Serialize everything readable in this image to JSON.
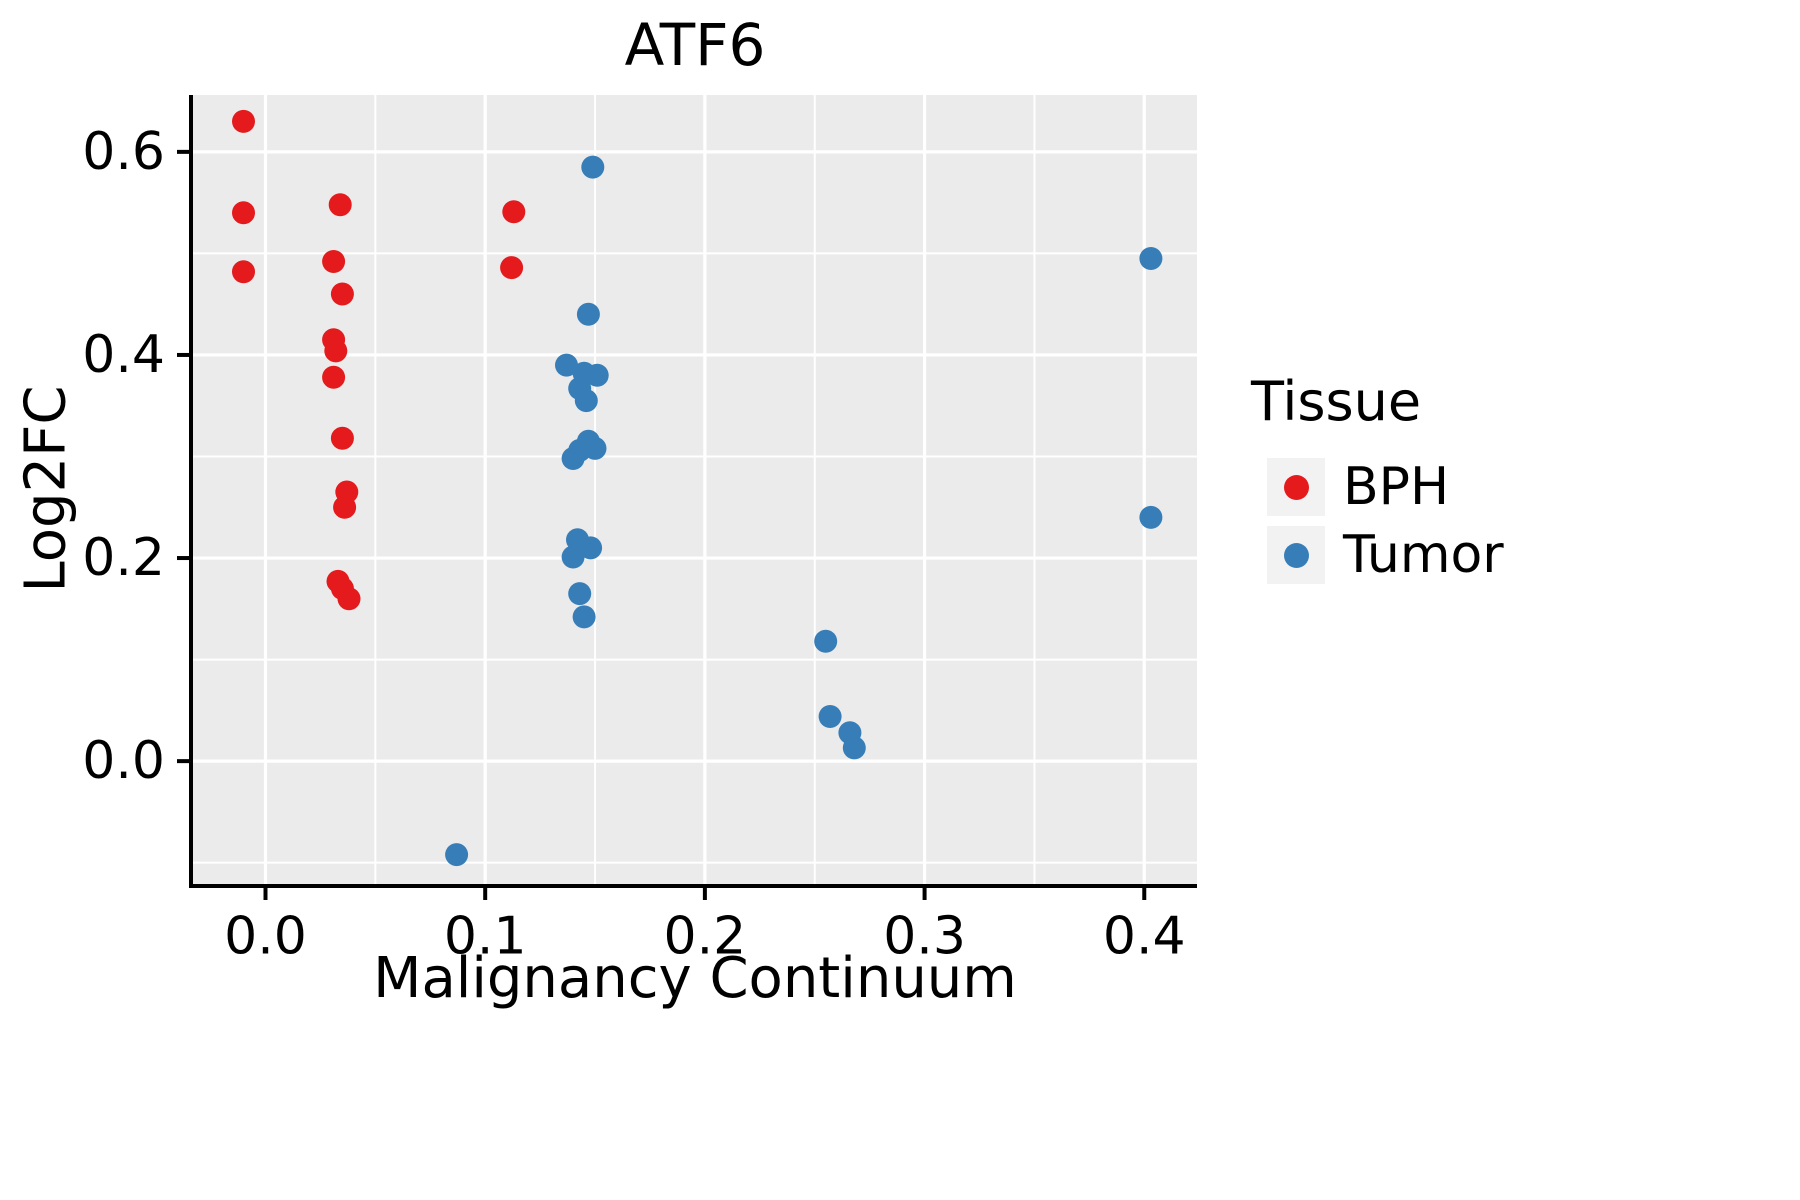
{
  "title": "ATF6",
  "axes": {
    "x_label": "Malignancy Continuum",
    "y_label": "Log2FC"
  },
  "legend": {
    "title": "Tissue",
    "items": [
      {
        "label": "BPH",
        "color": "#E41A1C"
      },
      {
        "label": "Tumor",
        "color": "#377EB8"
      }
    ]
  },
  "chart_data": {
    "type": "scatter",
    "title": "ATF6",
    "xlabel": "Malignancy Continuum",
    "ylabel": "Log2FC",
    "xlim": [
      -0.033,
      0.424
    ],
    "ylim": [
      -0.121,
      0.656
    ],
    "x_major_ticks": [
      0.0,
      0.1,
      0.2,
      0.3,
      0.4
    ],
    "x_tick_labels": [
      "0.0",
      "0.1",
      "0.2",
      "0.3",
      "0.4"
    ],
    "x_minor_ticks": [
      0.05,
      0.15,
      0.25,
      0.35
    ],
    "y_major_ticks": [
      0.0,
      0.2,
      0.4,
      0.6
    ],
    "y_tick_labels": [
      "0.0",
      "0.2",
      "0.4",
      "0.6"
    ],
    "y_minor_ticks": [
      -0.1,
      0.1,
      0.3,
      0.5
    ],
    "panel_bg": "#EBEBEB",
    "grid_color": "#FFFFFF",
    "point_radius": 11.5,
    "legend_position": "right",
    "legend_title": "Tissue",
    "series": [
      {
        "name": "BPH",
        "color": "#E41A1C",
        "points": [
          [
            -0.01,
            0.63
          ],
          [
            -0.01,
            0.54
          ],
          [
            -0.01,
            0.482
          ],
          [
            0.034,
            0.548
          ],
          [
            0.031,
            0.492
          ],
          [
            0.035,
            0.46
          ],
          [
            0.031,
            0.415
          ],
          [
            0.032,
            0.404
          ],
          [
            0.031,
            0.378
          ],
          [
            0.035,
            0.318
          ],
          [
            0.037,
            0.265
          ],
          [
            0.036,
            0.25
          ],
          [
            0.033,
            0.177
          ],
          [
            0.035,
            0.17
          ],
          [
            0.038,
            0.16
          ],
          [
            0.113,
            0.541
          ],
          [
            0.112,
            0.486
          ]
        ]
      },
      {
        "name": "Tumor",
        "color": "#377EB8",
        "points": [
          [
            0.149,
            0.585
          ],
          [
            0.147,
            0.44
          ],
          [
            0.137,
            0.39
          ],
          [
            0.145,
            0.382
          ],
          [
            0.151,
            0.38
          ],
          [
            0.143,
            0.367
          ],
          [
            0.146,
            0.355
          ],
          [
            0.14,
            0.298
          ],
          [
            0.143,
            0.306
          ],
          [
            0.147,
            0.315
          ],
          [
            0.15,
            0.308
          ],
          [
            0.142,
            0.218
          ],
          [
            0.148,
            0.21
          ],
          [
            0.14,
            0.201
          ],
          [
            0.143,
            0.165
          ],
          [
            0.145,
            0.142
          ],
          [
            0.255,
            0.118
          ],
          [
            0.257,
            0.044
          ],
          [
            0.266,
            0.028
          ],
          [
            0.268,
            0.013
          ],
          [
            0.403,
            0.495
          ],
          [
            0.403,
            0.24
          ],
          [
            0.087,
            -0.092
          ]
        ]
      }
    ]
  }
}
